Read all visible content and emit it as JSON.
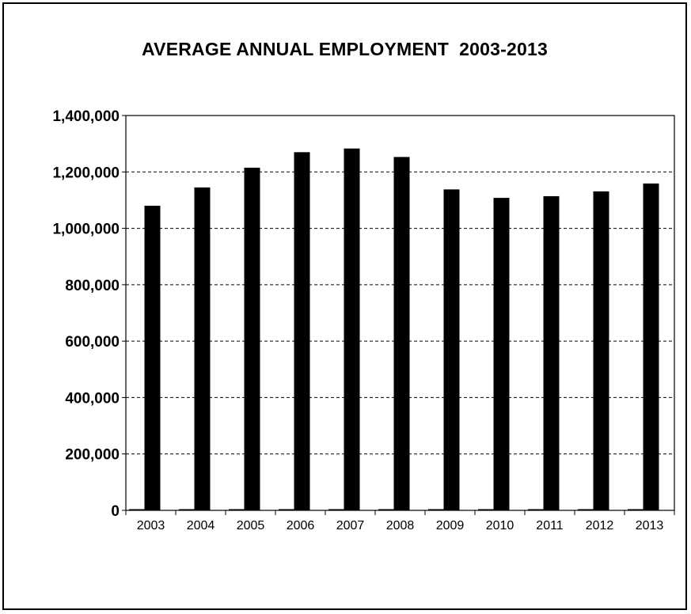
{
  "chart_data": {
    "type": "bar",
    "title": "AVERAGE ANNUAL EMPLOYMENT  2003-2013",
    "xlabel": "",
    "ylabel": "",
    "categories": [
      "2003",
      "2004",
      "2005",
      "2006",
      "2007",
      "2008",
      "2009",
      "2010",
      "2011",
      "2012",
      "2013"
    ],
    "values": [
      1080000,
      1145000,
      1215000,
      1270000,
      1283000,
      1253000,
      1138000,
      1108000,
      1114000,
      1131000,
      1159000
    ],
    "ylim": [
      0,
      1400000
    ],
    "yticks": [
      0,
      200000,
      400000,
      600000,
      800000,
      1000000,
      1200000,
      1400000
    ],
    "ytick_labels": [
      "0",
      "200,000",
      "400,000",
      "600,000",
      "800,000",
      "1,000,000",
      "1,200,000",
      "1,400,000"
    ],
    "grid": true,
    "grid_style": "dashed",
    "legend": "none",
    "bar_color": "#000000"
  }
}
